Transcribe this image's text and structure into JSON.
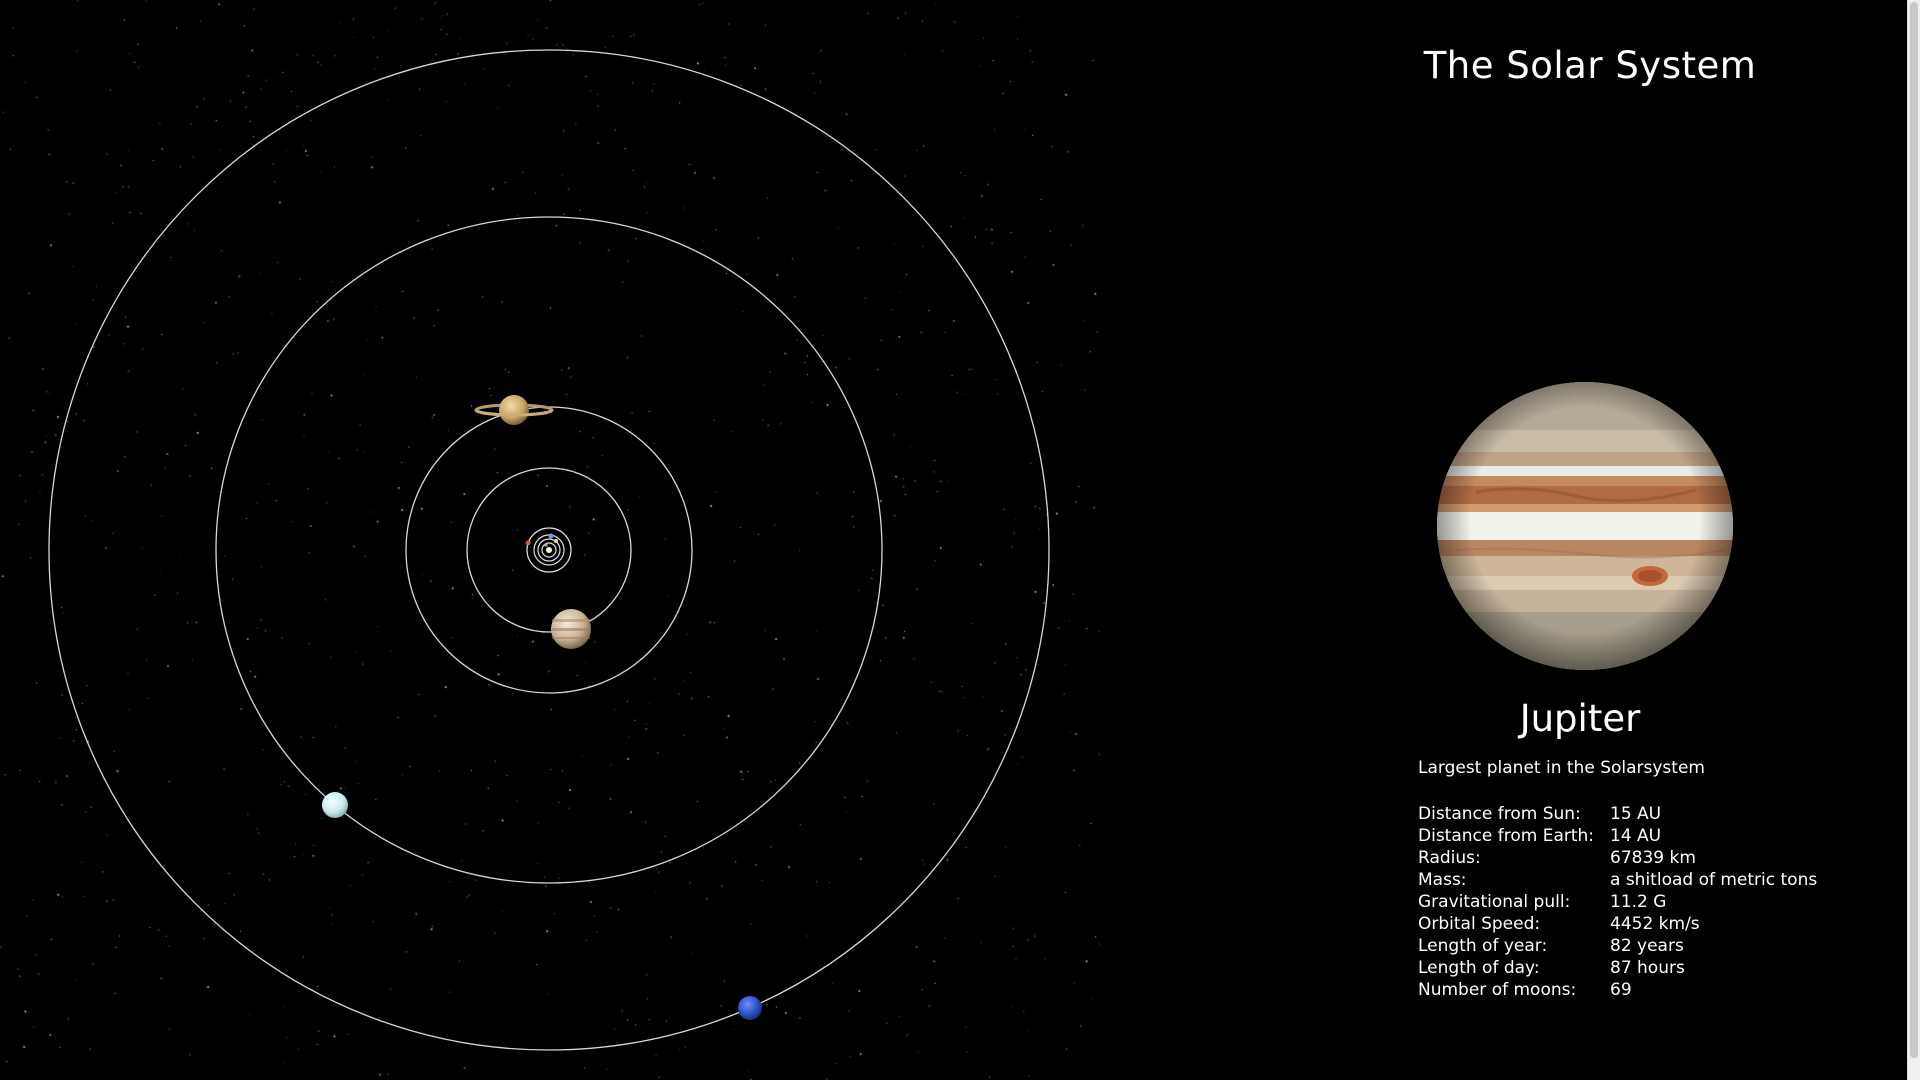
{
  "app": {
    "title": "The Solar System"
  },
  "selected_planet": {
    "name": "Jupiter",
    "description": "Largest planet in the Solarsystem",
    "facts": [
      {
        "label": "Distance from Sun:",
        "value": "15 AU"
      },
      {
        "label": "Distance from Earth:",
        "value": "14 AU"
      },
      {
        "label": "Radius:",
        "value": "67839 km"
      },
      {
        "label": "Mass:",
        "value": "a shitload of metric tons"
      },
      {
        "label": "Gravitational pull:",
        "value": "11.2 G"
      },
      {
        "label": "Orbital Speed:",
        "value": "4452 km/s"
      },
      {
        "label": "Length of year:",
        "value": "82 years"
      },
      {
        "label": "Length of day:",
        "value": "87 hours"
      },
      {
        "label": "Number of moons:",
        "value": "69"
      }
    ]
  },
  "orbit_map": {
    "planets": [
      "Mercury",
      "Venus",
      "Earth",
      "Mars",
      "Jupiter",
      "Saturn",
      "Uranus",
      "Neptune"
    ]
  },
  "colors": {
    "background": "#000000",
    "orbit": "#d8d8d8",
    "text": "#ffffff",
    "uranus": "#cfeeee",
    "neptune": "#2f52c8"
  }
}
